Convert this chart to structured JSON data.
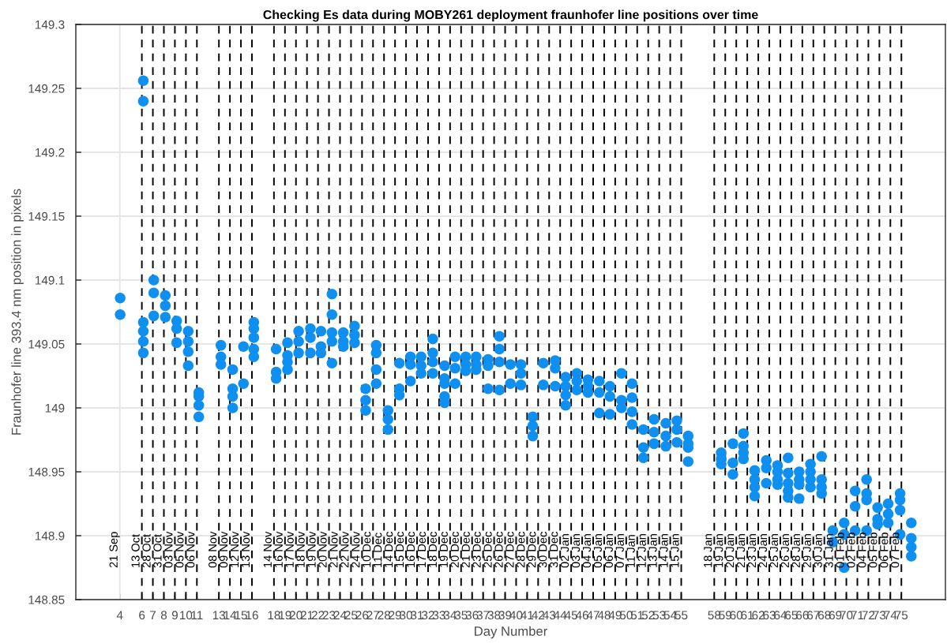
{
  "chart_data": {
    "type": "scatter",
    "title": "Checking Es data during MOBY261 deployment fraunhofer line positions over time",
    "xlabel": "Day Number",
    "ylabel": "Fraunhofer line 393.4 nm position in pixels",
    "xlim": [
      0,
      79
    ],
    "ylim": [
      148.85,
      149.3
    ],
    "xticks": [
      4,
      6,
      7,
      8,
      9,
      10,
      11,
      13,
      14,
      15,
      16,
      18,
      19,
      20,
      21,
      22,
      23,
      24,
      25,
      26,
      27,
      28,
      29,
      30,
      31,
      32,
      33,
      34,
      35,
      36,
      37,
      38,
      39,
      40,
      41,
      42,
      43,
      44,
      45,
      46,
      47,
      48,
      49,
      50,
      51,
      52,
      53,
      54,
      55,
      58,
      59,
      60,
      61,
      62,
      63,
      64,
      65,
      66,
      67,
      68,
      69,
      70,
      71,
      72,
      73,
      74,
      75
    ],
    "yticks": [
      148.85,
      148.9,
      148.95,
      149,
      149.05,
      149.1,
      149.15,
      149.2,
      149.25,
      149.3
    ],
    "grid": "y",
    "marker": "circle",
    "legend": false,
    "series": [
      {
        "color": "#0f8ff0",
        "x": [
          4.03,
          4.03,
          6.13,
          6.13,
          6.13,
          6.13,
          6.13,
          6.13,
          7.08,
          7.08,
          7.08,
          8.13,
          8.13,
          8.13,
          9.16,
          9.16,
          9.16,
          10.21,
          10.21,
          10.21,
          10.21,
          11.17,
          11.17,
          11.17,
          11.17,
          13.18,
          13.18,
          13.18,
          14.25,
          14.25,
          14.25,
          14.25,
          15.23,
          15.23,
          16.17,
          16.17,
          16.17,
          16.17,
          16.17,
          18.2,
          18.2,
          18.2,
          19.23,
          19.23,
          19.23,
          19.23,
          20.24,
          20.24,
          20.24,
          21.31,
          21.31,
          21.31,
          22.27,
          22.27,
          22.27,
          23.27,
          23.27,
          23.27,
          23.27,
          23.27,
          24.3,
          24.3,
          24.3,
          25.32,
          25.32,
          25.32,
          26.33,
          26.33,
          26.33,
          27.29,
          27.29,
          27.29,
          27.29,
          28.36,
          28.36,
          28.36,
          29.39,
          29.39,
          29.39,
          30.4,
          30.4,
          30.4,
          31.37,
          31.37,
          31.37,
          32.43,
          32.43,
          32.43,
          32.43,
          33.5,
          33.5,
          33.5,
          33.5,
          33.5,
          34.46,
          34.46,
          34.46,
          35.42,
          35.42,
          35.42,
          36.37,
          36.37,
          36.37,
          37.45,
          37.45,
          37.45,
          38.48,
          38.48,
          38.48,
          38.48,
          39.48,
          39.48,
          40.44,
          40.44,
          40.44,
          41.51,
          41.51,
          41.51,
          42.47,
          42.47,
          43.55,
          43.55,
          43.55,
          44.5,
          44.5,
          44.5,
          44.5,
          45.51,
          45.51,
          45.51,
          46.53,
          46.53,
          46.53,
          47.56,
          47.56,
          47.56,
          48.52,
          48.52,
          48.52,
          49.57,
          49.57,
          49.57,
          50.53,
          50.53,
          50.53,
          50.53,
          51.56,
          51.56,
          51.56,
          52.53,
          52.53,
          52.53,
          53.6,
          53.6,
          53.6,
          54.6,
          54.6,
          54.6,
          55.63,
          55.63,
          55.63,
          55.63,
          58.63,
          58.63,
          58.63,
          59.69,
          59.69,
          59.69,
          60.65,
          60.65,
          60.65,
          60.65,
          61.67,
          61.67,
          61.67,
          61.67,
          62.73,
          62.73,
          62.73,
          63.75,
          63.75,
          63.75,
          63.75,
          64.71,
          64.71,
          64.71,
          64.71,
          64.71,
          65.71,
          65.71,
          65.71,
          65.71,
          66.74,
          66.74,
          66.74,
          66.74,
          67.75,
          67.75,
          67.75,
          67.75,
          68.77,
          68.77,
          69.8,
          69.8,
          69.8,
          70.8,
          70.8,
          70.8,
          71.84,
          71.84,
          71.84,
          71.84,
          72.84,
          72.84,
          72.84,
          73.8,
          73.8,
          73.8,
          74.88,
          74.88,
          74.88,
          74.88,
          75.9,
          75.9,
          75.9,
          75.9
        ],
        "values": [
          149.086,
          149.073,
          149.256,
          149.24,
          149.067,
          149.06,
          149.052,
          149.043,
          149.1,
          149.09,
          149.072,
          149.088,
          149.08,
          149.071,
          149.068,
          149.062,
          149.051,
          149.06,
          149.052,
          149.044,
          149.033,
          149.012,
          149.009,
          149.002,
          148.993,
          149.049,
          149.04,
          149.034,
          149.03,
          149.015,
          149.009,
          149.0,
          149.048,
          149.019,
          149.067,
          149.062,
          149.055,
          149.046,
          149.04,
          149.046,
          149.028,
          149.023,
          149.051,
          149.041,
          149.036,
          149.03,
          149.06,
          149.052,
          149.043,
          149.062,
          149.055,
          149.043,
          149.06,
          149.048,
          149.043,
          149.089,
          149.073,
          149.059,
          149.052,
          149.035,
          149.059,
          149.052,
          149.048,
          149.064,
          149.057,
          149.051,
          149.015,
          149.006,
          148.998,
          149.049,
          149.043,
          149.03,
          149.019,
          148.998,
          148.991,
          148.983,
          149.035,
          149.015,
          149.01,
          149.04,
          149.034,
          149.021,
          149.04,
          149.033,
          149.027,
          149.054,
          149.043,
          149.036,
          149.027,
          149.033,
          149.023,
          149.019,
          149.009,
          149.004,
          149.04,
          149.031,
          149.019,
          149.04,
          149.034,
          149.029,
          149.04,
          149.034,
          149.03,
          149.038,
          149.033,
          149.015,
          149.056,
          149.046,
          149.036,
          149.014,
          149.034,
          149.019,
          149.034,
          149.027,
          149.018,
          148.993,
          148.986,
          148.978,
          149.035,
          149.018,
          149.037,
          149.031,
          149.017,
          149.024,
          149.017,
          149.01,
          149.002,
          149.027,
          149.021,
          149.014,
          149.022,
          149.017,
          149.012,
          149.021,
          149.012,
          148.996,
          149.017,
          149.009,
          148.995,
          149.027,
          149.006,
          149.0,
          149.019,
          149.008,
          148.997,
          148.987,
          148.983,
          148.969,
          148.961,
          148.991,
          148.981,
          148.972,
          148.988,
          148.978,
          148.97,
          148.99,
          148.983,
          148.973,
          148.978,
          148.972,
          148.969,
          148.958,
          148.965,
          148.96,
          148.956,
          148.972,
          148.957,
          148.948,
          148.98,
          148.97,
          148.965,
          148.96,
          148.951,
          148.944,
          148.938,
          148.931,
          148.959,
          148.953,
          148.941,
          148.955,
          148.95,
          148.944,
          148.94,
          148.961,
          148.949,
          148.941,
          148.935,
          148.93,
          148.95,
          148.944,
          148.94,
          148.929,
          148.956,
          148.95,
          148.944,
          148.938,
          148.962,
          148.944,
          148.938,
          148.933,
          148.904,
          148.895,
          148.91,
          148.901,
          148.875,
          148.935,
          148.923,
          148.904,
          148.944,
          148.933,
          148.928,
          148.904,
          148.922,
          148.913,
          148.909,
          148.925,
          148.917,
          148.91,
          148.933,
          148.928,
          148.92,
          148.901,
          148.91,
          148.898,
          148.891,
          148.884
        ]
      }
    ],
    "ref_lines": [
      {
        "axis": "x",
        "value": 4,
        "label": "21 Sep",
        "color": "#e6e6e6",
        "line_style": "solid"
      },
      {
        "axis": "x",
        "value": 6,
        "label": "13 Oct",
        "color": "#000000",
        "line_style": "dashed"
      },
      {
        "axis": "x",
        "value": 7,
        "label": "28 Oct",
        "color": "#000000",
        "line_style": "dashed"
      },
      {
        "axis": "x",
        "value": 8,
        "label": "31 Oct",
        "color": "#000000",
        "line_style": "dashed"
      },
      {
        "axis": "x",
        "value": 9,
        "label": "03 Nov",
        "color": "#000000",
        "line_style": "dashed"
      },
      {
        "axis": "x",
        "value": 10,
        "label": "05 Nov",
        "color": "#000000",
        "line_style": "dashed"
      },
      {
        "axis": "x",
        "value": 11,
        "label": "06 Nov",
        "color": "#000000",
        "line_style": "dashed"
      },
      {
        "axis": "x",
        "value": 13,
        "label": "08 Nov",
        "color": "#000000",
        "line_style": "dashed"
      },
      {
        "axis": "x",
        "value": 14,
        "label": "09 Nov",
        "color": "#000000",
        "line_style": "dashed"
      },
      {
        "axis": "x",
        "value": 15,
        "label": "12 Nov",
        "color": "#000000",
        "line_style": "dashed"
      },
      {
        "axis": "x",
        "value": 16,
        "label": "13 Nov",
        "color": "#000000",
        "line_style": "dashed"
      },
      {
        "axis": "x",
        "value": 18,
        "label": "14 Nov",
        "color": "#000000",
        "line_style": "dashed"
      },
      {
        "axis": "x",
        "value": 19,
        "label": "16 Nov",
        "color": "#000000",
        "line_style": "dashed"
      },
      {
        "axis": "x",
        "value": 20,
        "label": "17 Nov",
        "color": "#000000",
        "line_style": "dashed"
      },
      {
        "axis": "x",
        "value": 21,
        "label": "18 Nov",
        "color": "#000000",
        "line_style": "dashed"
      },
      {
        "axis": "x",
        "value": 22,
        "label": "19 Nov",
        "color": "#000000",
        "line_style": "dashed"
      },
      {
        "axis": "x",
        "value": 23,
        "label": "20 Nov",
        "color": "#000000",
        "line_style": "dashed"
      },
      {
        "axis": "x",
        "value": 24,
        "label": "21 Nov",
        "color": "#000000",
        "line_style": "dashed"
      },
      {
        "axis": "x",
        "value": 25,
        "label": "22 Nov",
        "color": "#000000",
        "line_style": "dashed"
      },
      {
        "axis": "x",
        "value": 26,
        "label": "24 Nov",
        "color": "#000000",
        "line_style": "dashed"
      },
      {
        "axis": "x",
        "value": 27,
        "label": "10 Dec",
        "color": "#000000",
        "line_style": "dashed"
      },
      {
        "axis": "x",
        "value": 28,
        "label": "11 Dec",
        "color": "#000000",
        "line_style": "dashed"
      },
      {
        "axis": "x",
        "value": 29,
        "label": "14 Dec",
        "color": "#000000",
        "line_style": "dashed"
      },
      {
        "axis": "x",
        "value": 30,
        "label": "15 Dec",
        "color": "#000000",
        "line_style": "dashed"
      },
      {
        "axis": "x",
        "value": 31,
        "label": "16 Dec",
        "color": "#000000",
        "line_style": "dashed"
      },
      {
        "axis": "x",
        "value": 32,
        "label": "17 Dec",
        "color": "#000000",
        "line_style": "dashed"
      },
      {
        "axis": "x",
        "value": 33,
        "label": "18 Dec",
        "color": "#000000",
        "line_style": "dashed"
      },
      {
        "axis": "x",
        "value": 34,
        "label": "19 Dec",
        "color": "#000000",
        "line_style": "dashed"
      },
      {
        "axis": "x",
        "value": 35,
        "label": "20 Dec",
        "color": "#000000",
        "line_style": "dashed"
      },
      {
        "axis": "x",
        "value": 36,
        "label": "21 Dec",
        "color": "#000000",
        "line_style": "dashed"
      },
      {
        "axis": "x",
        "value": 37,
        "label": "23 Dec",
        "color": "#000000",
        "line_style": "dashed"
      },
      {
        "axis": "x",
        "value": 38,
        "label": "25 Dec",
        "color": "#000000",
        "line_style": "dashed"
      },
      {
        "axis": "x",
        "value": 39,
        "label": "26 Dec",
        "color": "#000000",
        "line_style": "dashed"
      },
      {
        "axis": "x",
        "value": 40,
        "label": "27 Dec",
        "color": "#000000",
        "line_style": "dashed"
      },
      {
        "axis": "x",
        "value": 41,
        "label": "28 Dec",
        "color": "#000000",
        "line_style": "dashed"
      },
      {
        "axis": "x",
        "value": 42,
        "label": "29 Dec",
        "color": "#000000",
        "line_style": "dashed"
      },
      {
        "axis": "x",
        "value": 43,
        "label": "30 Dec",
        "color": "#000000",
        "line_style": "dashed"
      },
      {
        "axis": "x",
        "value": 44,
        "label": "31 Dec",
        "color": "#000000",
        "line_style": "dashed"
      },
      {
        "axis": "x",
        "value": 45,
        "label": "02 Jan",
        "color": "#000000",
        "line_style": "dashed"
      },
      {
        "axis": "x",
        "value": 46,
        "label": "03 Jan",
        "color": "#000000",
        "line_style": "dashed"
      },
      {
        "axis": "x",
        "value": 47,
        "label": "04 Jan",
        "color": "#000000",
        "line_style": "dashed"
      },
      {
        "axis": "x",
        "value": 48,
        "label": "05 Jan",
        "color": "#000000",
        "line_style": "dashed"
      },
      {
        "axis": "x",
        "value": 49,
        "label": "06 Jan",
        "color": "#000000",
        "line_style": "dashed"
      },
      {
        "axis": "x",
        "value": 50,
        "label": "07 Jan",
        "color": "#000000",
        "line_style": "dashed"
      },
      {
        "axis": "x",
        "value": 51,
        "label": "11 Jan",
        "color": "#000000",
        "line_style": "dashed"
      },
      {
        "axis": "x",
        "value": 52,
        "label": "12 Jan",
        "color": "#000000",
        "line_style": "dashed"
      },
      {
        "axis": "x",
        "value": 53,
        "label": "13 Jan",
        "color": "#000000",
        "line_style": "dashed"
      },
      {
        "axis": "x",
        "value": 54,
        "label": "14 Jan",
        "color": "#000000",
        "line_style": "dashed"
      },
      {
        "axis": "x",
        "value": 55,
        "label": "15 Jan",
        "color": "#000000",
        "line_style": "dashed"
      },
      {
        "axis": "x",
        "value": 58,
        "label": "18 Jan",
        "color": "#000000",
        "line_style": "dashed"
      },
      {
        "axis": "x",
        "value": 59,
        "label": "19 Jan",
        "color": "#000000",
        "line_style": "dashed"
      },
      {
        "axis": "x",
        "value": 60,
        "label": "20 Jan",
        "color": "#000000",
        "line_style": "dashed"
      },
      {
        "axis": "x",
        "value": 61,
        "label": "21 Jan",
        "color": "#000000",
        "line_style": "dashed"
      },
      {
        "axis": "x",
        "value": 62,
        "label": "23 Jan",
        "color": "#000000",
        "line_style": "dashed"
      },
      {
        "axis": "x",
        "value": 63,
        "label": "24 Jan",
        "color": "#000000",
        "line_style": "dashed"
      },
      {
        "axis": "x",
        "value": 64,
        "label": "25 Jan",
        "color": "#000000",
        "line_style": "dashed"
      },
      {
        "axis": "x",
        "value": 65,
        "label": "26 Jan",
        "color": "#000000",
        "line_style": "dashed"
      },
      {
        "axis": "x",
        "value": 66,
        "label": "28 Jan",
        "color": "#000000",
        "line_style": "dashed"
      },
      {
        "axis": "x",
        "value": 67,
        "label": "29 Jan",
        "color": "#000000",
        "line_style": "dashed"
      },
      {
        "axis": "x",
        "value": 68,
        "label": "30 Jan",
        "color": "#000000",
        "line_style": "dashed"
      },
      {
        "axis": "x",
        "value": 69,
        "label": "31 Jan",
        "color": "#000000",
        "line_style": "dashed"
      },
      {
        "axis": "x",
        "value": 70,
        "label": "01 Feb",
        "color": "#000000",
        "line_style": "dashed"
      },
      {
        "axis": "x",
        "value": 71,
        "label": "02 Feb",
        "color": "#000000",
        "line_style": "dashed"
      },
      {
        "axis": "x",
        "value": 72,
        "label": "04 Feb",
        "color": "#000000",
        "line_style": "dashed"
      },
      {
        "axis": "x",
        "value": 73,
        "label": "05 Feb",
        "color": "#000000",
        "line_style": "dashed"
      },
      {
        "axis": "x",
        "value": 74,
        "label": "06 Feb",
        "color": "#000000",
        "line_style": "dashed"
      },
      {
        "axis": "x",
        "value": 75,
        "label": "07 Feb",
        "color": "#000000",
        "line_style": "dashed"
      }
    ]
  }
}
